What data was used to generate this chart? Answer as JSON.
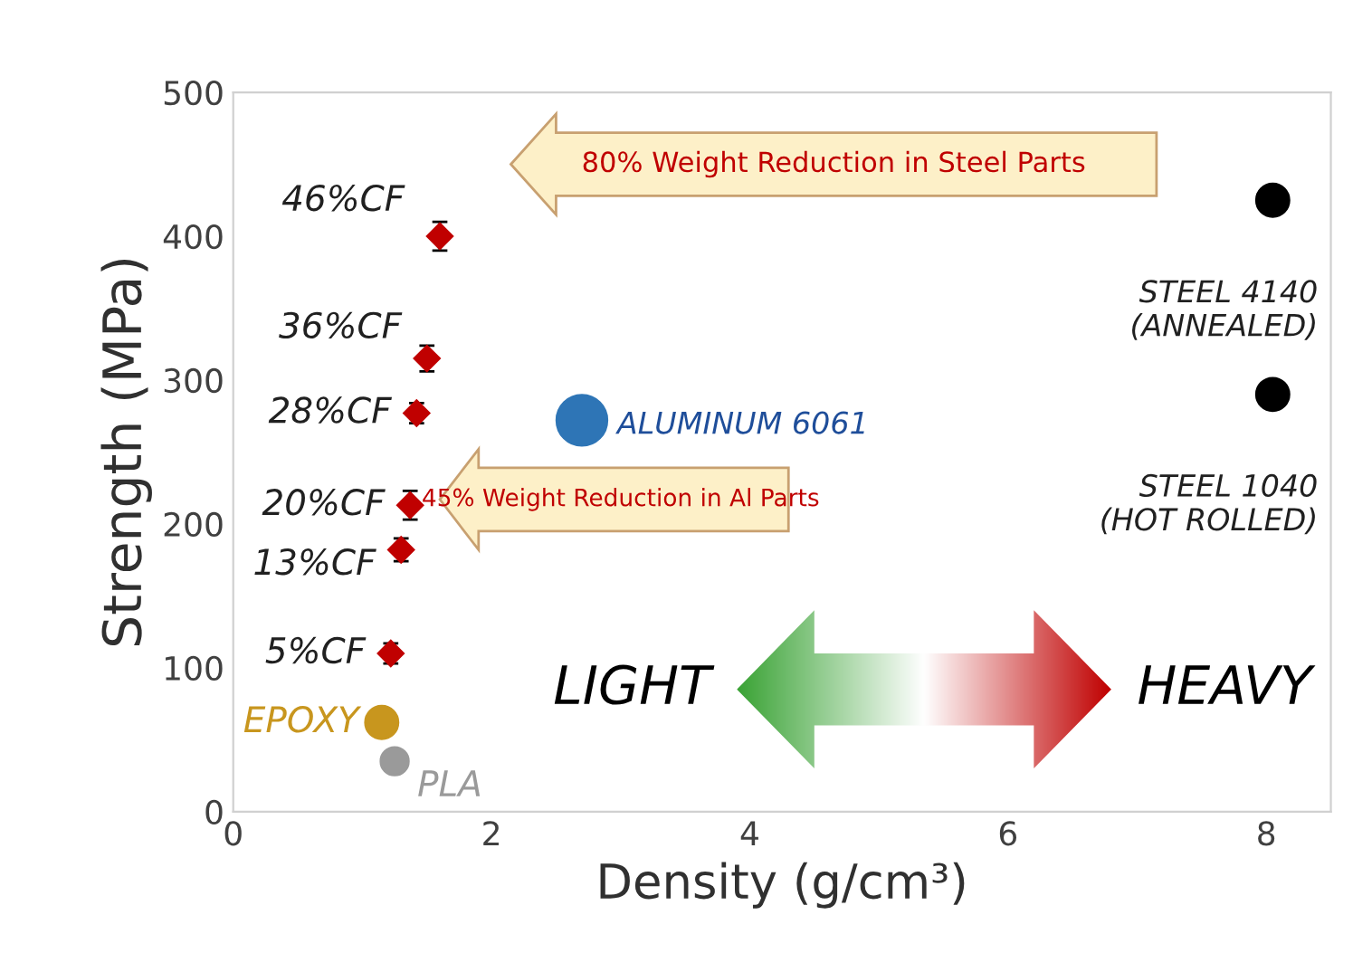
{
  "chart_data": {
    "type": "scatter",
    "xlabel": "Density (g/cm³)",
    "ylabel": "Strength (MPa)",
    "xlim": [
      0,
      8.5
    ],
    "ylim": [
      0,
      500
    ],
    "xticks": [
      0,
      2,
      4,
      6,
      8
    ],
    "yticks": [
      0,
      100,
      200,
      300,
      400,
      500
    ],
    "grid": false,
    "series": [
      {
        "color": "#c00000",
        "marker": "diamond",
        "x": [
          1.6,
          1.5,
          1.42,
          1.37,
          1.3,
          1.22
        ],
        "values": [
          400,
          315,
          277,
          213,
          182,
          110
        ],
        "errors": [
          10,
          9,
          7,
          10,
          8,
          7
        ]
      },
      {
        "color": "#c8961e",
        "marker": "circle",
        "x": [
          1.15
        ],
        "values": [
          62
        ]
      },
      {
        "color": "#9a9a9a",
        "marker": "circle",
        "x": [
          1.25
        ],
        "values": [
          35
        ]
      },
      {
        "color": "#2e75b6",
        "marker": "circle",
        "x": [
          2.7
        ],
        "values": [
          272
        ]
      },
      {
        "color": "#000000",
        "marker": "circle",
        "x": [
          8.05,
          8.05
        ],
        "values": [
          425,
          290
        ]
      }
    ],
    "annotations": [
      {
        "text": "46%CF",
        "x": 1.6,
        "y": 400
      },
      {
        "text": "36%CF",
        "x": 1.5,
        "y": 315
      },
      {
        "text": "28%CF",
        "x": 1.42,
        "y": 277
      },
      {
        "text": "20%CF",
        "x": 1.37,
        "y": 213
      },
      {
        "text": "13%CF",
        "x": 1.3,
        "y": 182
      },
      {
        "text": "5%CF",
        "x": 1.22,
        "y": 110
      },
      {
        "text": "EPOXY",
        "x": 1.15,
        "y": 62
      },
      {
        "text": "PLA",
        "x": 1.25,
        "y": 35
      },
      {
        "text": "ALUMINUM 6061",
        "x": 2.7,
        "y": 272
      },
      {
        "text": "STEEL 4140\n(ANNEALED)",
        "x": 8.05,
        "y": 425
      },
      {
        "text": "STEEL 1040\n(HOT ROLLED)",
        "x": 8.05,
        "y": 290
      },
      "80% Weight Reduction in Steel Parts",
      "45% Weight Reduction in Al Parts",
      "LIGHT",
      "HEAVY"
    ]
  }
}
